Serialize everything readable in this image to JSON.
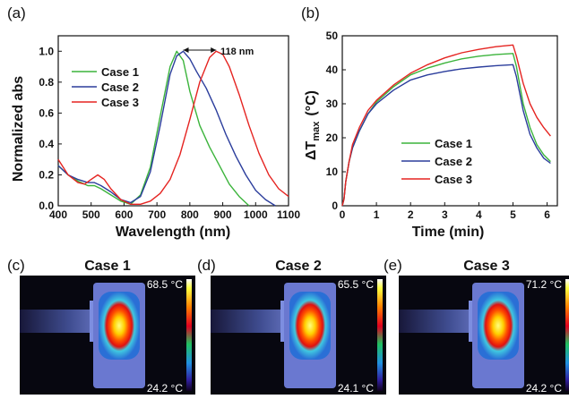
{
  "panel_labels": [
    "(a)",
    "(b)",
    "(c)",
    "(d)",
    "(e)"
  ],
  "chart_data": [
    {
      "type": "line",
      "panel": "(a)",
      "xlabel": "Wavelength (nm)",
      "ylabel": "Normalized abs",
      "xlim": [
        400,
        1100
      ],
      "ylim": [
        0,
        1.1
      ],
      "xticks": [
        "400",
        "500",
        "600",
        "700",
        "800",
        "900",
        "1000",
        "1100"
      ],
      "yticks": [
        "0.0",
        "0.2",
        "0.4",
        "0.6",
        "0.8",
        "1.0"
      ],
      "annotation": "118 nm",
      "legend_position": "top-left",
      "series": [
        {
          "name": "Case 1",
          "color": "#3cb43c",
          "x": [
            400,
            430,
            460,
            490,
            510,
            530,
            560,
            590,
            620,
            650,
            680,
            710,
            740,
            760,
            780,
            800,
            830,
            860,
            890,
            920,
            950,
            980
          ],
          "y": [
            0.26,
            0.2,
            0.16,
            0.13,
            0.13,
            0.11,
            0.07,
            0.03,
            0.01,
            0.07,
            0.25,
            0.58,
            0.9,
            1.0,
            0.94,
            0.74,
            0.52,
            0.38,
            0.26,
            0.14,
            0.06,
            0.0
          ]
        },
        {
          "name": "Case 2",
          "color": "#2b3d9c",
          "x": [
            400,
            430,
            460,
            490,
            510,
            530,
            560,
            590,
            620,
            650,
            680,
            710,
            740,
            760,
            780,
            800,
            820,
            850,
            880,
            910,
            940,
            970,
            1000,
            1030,
            1060
          ],
          "y": [
            0.26,
            0.2,
            0.17,
            0.15,
            0.15,
            0.13,
            0.09,
            0.04,
            0.02,
            0.06,
            0.22,
            0.52,
            0.85,
            0.97,
            1.0,
            0.95,
            0.87,
            0.76,
            0.62,
            0.46,
            0.32,
            0.2,
            0.1,
            0.04,
            0.0
          ]
        },
        {
          "name": "Case 3",
          "color": "#e52421",
          "x": [
            400,
            430,
            460,
            480,
            500,
            520,
            540,
            560,
            590,
            620,
            650,
            680,
            710,
            740,
            770,
            800,
            830,
            860,
            880,
            900,
            920,
            950,
            980,
            1010,
            1040,
            1070,
            1100
          ],
          "y": [
            0.3,
            0.2,
            0.15,
            0.14,
            0.17,
            0.2,
            0.17,
            0.11,
            0.04,
            0.01,
            0.01,
            0.03,
            0.08,
            0.17,
            0.33,
            0.56,
            0.8,
            0.96,
            1.0,
            0.98,
            0.9,
            0.72,
            0.52,
            0.34,
            0.2,
            0.11,
            0.06
          ]
        }
      ]
    },
    {
      "type": "line",
      "panel": "(b)",
      "xlabel": "Time (min)",
      "ylabel_main": "ΔT",
      "ylabel_sub": "max",
      "ylabel_unit": "(°C)",
      "xlim": [
        0,
        6.3
      ],
      "ylim": [
        0,
        50
      ],
      "xticks": [
        "0",
        "1",
        "2",
        "3",
        "4",
        "5",
        "6"
      ],
      "yticks": [
        "0",
        "10",
        "20",
        "30",
        "40",
        "50"
      ],
      "legend_position": "bottom-right",
      "series": [
        {
          "name": "Case 1",
          "color": "#3cb43c",
          "x": [
            0,
            0.05,
            0.1,
            0.2,
            0.3,
            0.5,
            0.75,
            1,
            1.5,
            2,
            2.5,
            3,
            3.5,
            4,
            4.5,
            5,
            5.1,
            5.3,
            5.5,
            5.7,
            5.9,
            6.1
          ],
          "y": [
            0,
            2,
            7,
            13,
            17,
            22,
            27,
            30.5,
            35,
            38.5,
            40.5,
            42,
            43.2,
            44,
            44.5,
            44.8,
            41,
            30,
            23,
            18,
            15,
            13
          ]
        },
        {
          "name": "Case 2",
          "color": "#2b3d9c",
          "x": [
            0,
            0.05,
            0.1,
            0.2,
            0.3,
            0.5,
            0.75,
            1,
            1.5,
            2,
            2.5,
            3,
            3.5,
            4,
            4.5,
            5,
            5.1,
            5.3,
            5.5,
            5.7,
            5.9,
            6.1
          ],
          "y": [
            0,
            2,
            7,
            13,
            17,
            22,
            27,
            30,
            34,
            37,
            38.5,
            39.5,
            40.3,
            40.8,
            41.2,
            41.5,
            38,
            28,
            21,
            17,
            14,
            12.5
          ]
        },
        {
          "name": "Case 3",
          "color": "#e52421",
          "x": [
            0,
            0.05,
            0.1,
            0.2,
            0.3,
            0.5,
            0.75,
            1,
            1.5,
            2,
            2.5,
            3,
            3.5,
            4,
            4.5,
            5,
            5.1,
            5.3,
            5.5,
            5.7,
            5.9,
            6.1
          ],
          "y": [
            0,
            2,
            7,
            13,
            18,
            23,
            28,
            31,
            35.5,
            39,
            41.5,
            43.5,
            45,
            46,
            46.8,
            47.3,
            44,
            36,
            30,
            26,
            23,
            20.5
          ]
        }
      ]
    }
  ],
  "thermal_images": [
    {
      "panel": "(c)",
      "title": "Case 1",
      "max": "68.5 °C",
      "min": "24.2 °C"
    },
    {
      "panel": "(d)",
      "title": "Case 2",
      "max": "65.5 °C",
      "min": "24.1 °C"
    },
    {
      "panel": "(e)",
      "title": "Case 3",
      "max": "71.2 °C",
      "min": "24.2 °C"
    }
  ]
}
